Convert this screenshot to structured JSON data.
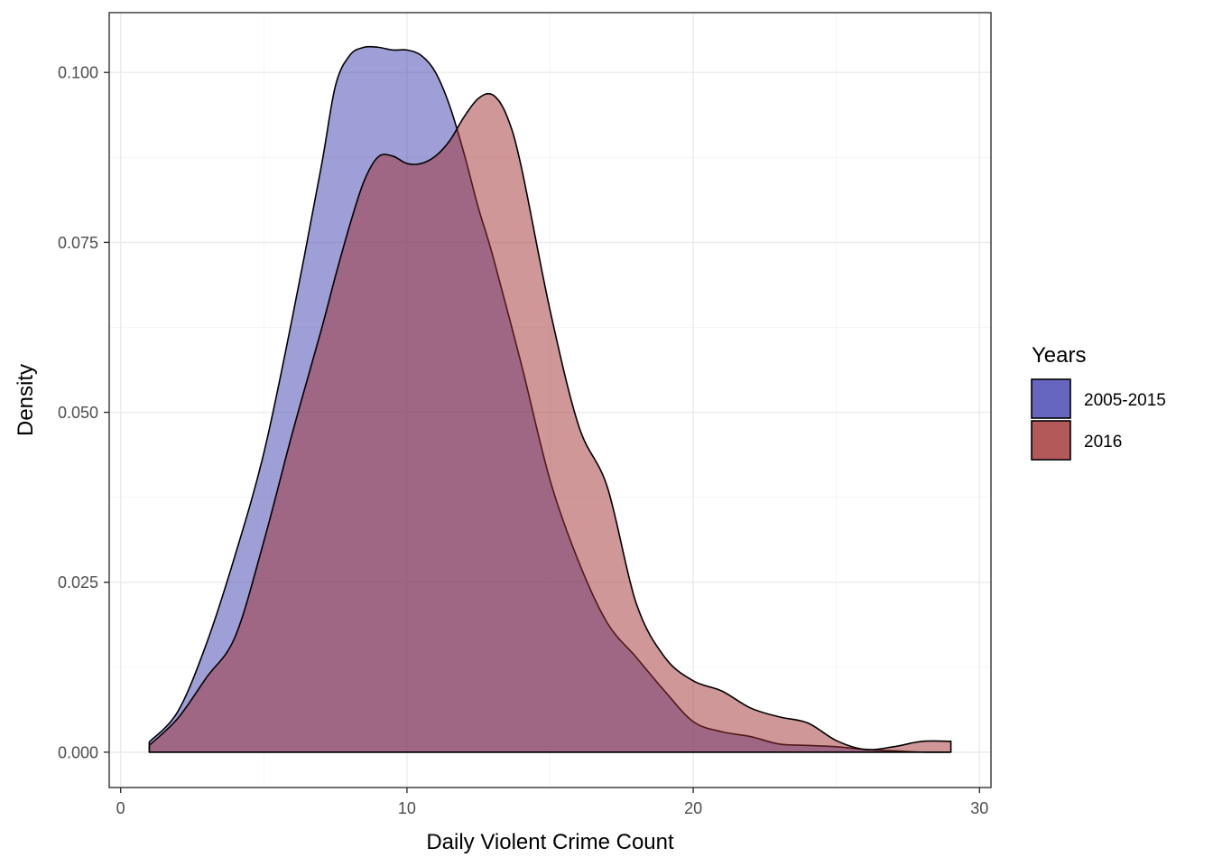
{
  "chart_data": {
    "type": "area",
    "title": "",
    "xlabel": "Daily Violent Crime Count",
    "ylabel": "Density",
    "xlim": [
      -0.4,
      30.4
    ],
    "ylim": [
      -0.0052,
      0.1088
    ],
    "x_ticks": [
      0,
      10,
      20,
      30
    ],
    "x_tick_labels": [
      "0",
      "10",
      "20",
      "30"
    ],
    "y_ticks": [
      0,
      0.025,
      0.05,
      0.075,
      0.1
    ],
    "y_tick_labels": [
      "0.000",
      "0.025",
      "0.050",
      "0.075",
      "0.100"
    ],
    "grid": true,
    "legend": {
      "title": "Years",
      "position": "right",
      "entries": [
        "2005-2015",
        "2016"
      ]
    },
    "series": [
      {
        "name": "2005-2015",
        "fill": "#4040b0",
        "opacity": 0.5,
        "x": [
          1,
          2,
          3,
          4,
          5,
          6,
          7,
          7.5,
          8,
          8.5,
          9,
          9.5,
          10,
          10.5,
          11,
          11.5,
          12,
          12.5,
          13,
          14,
          15,
          16,
          17,
          18,
          19,
          20,
          21,
          22,
          23,
          24,
          25,
          26,
          27,
          28,
          29
        ],
        "y": [
          0.0015,
          0.006,
          0.016,
          0.029,
          0.044,
          0.064,
          0.086,
          0.098,
          0.1025,
          0.1037,
          0.1037,
          0.1033,
          0.1033,
          0.1025,
          0.1,
          0.095,
          0.088,
          0.08,
          0.073,
          0.057,
          0.04,
          0.028,
          0.019,
          0.014,
          0.009,
          0.0045,
          0.003,
          0.0023,
          0.0012,
          0.001,
          0.0008,
          0.0004,
          0.0002,
          0.0,
          0.0
        ]
      },
      {
        "name": "2016",
        "fill": "#a03030",
        "opacity": 0.5,
        "x": [
          1,
          2,
          3,
          4,
          5,
          6,
          7,
          7.5,
          8,
          8.5,
          9,
          9.5,
          10,
          10.5,
          11,
          11.5,
          12,
          12.5,
          13,
          13.5,
          14,
          15,
          16,
          17,
          18,
          19,
          20,
          21,
          22,
          23,
          24,
          25,
          26,
          27,
          28,
          29
        ],
        "y": [
          0.001,
          0.005,
          0.011,
          0.017,
          0.031,
          0.047,
          0.062,
          0.07,
          0.0775,
          0.084,
          0.0876,
          0.0877,
          0.0866,
          0.0866,
          0.0877,
          0.09,
          0.0935,
          0.0962,
          0.0967,
          0.0935,
          0.086,
          0.065,
          0.048,
          0.039,
          0.022,
          0.014,
          0.0105,
          0.009,
          0.0065,
          0.0052,
          0.0043,
          0.0017,
          0.0004,
          0.0008,
          0.0016,
          0.0016
        ]
      }
    ]
  }
}
